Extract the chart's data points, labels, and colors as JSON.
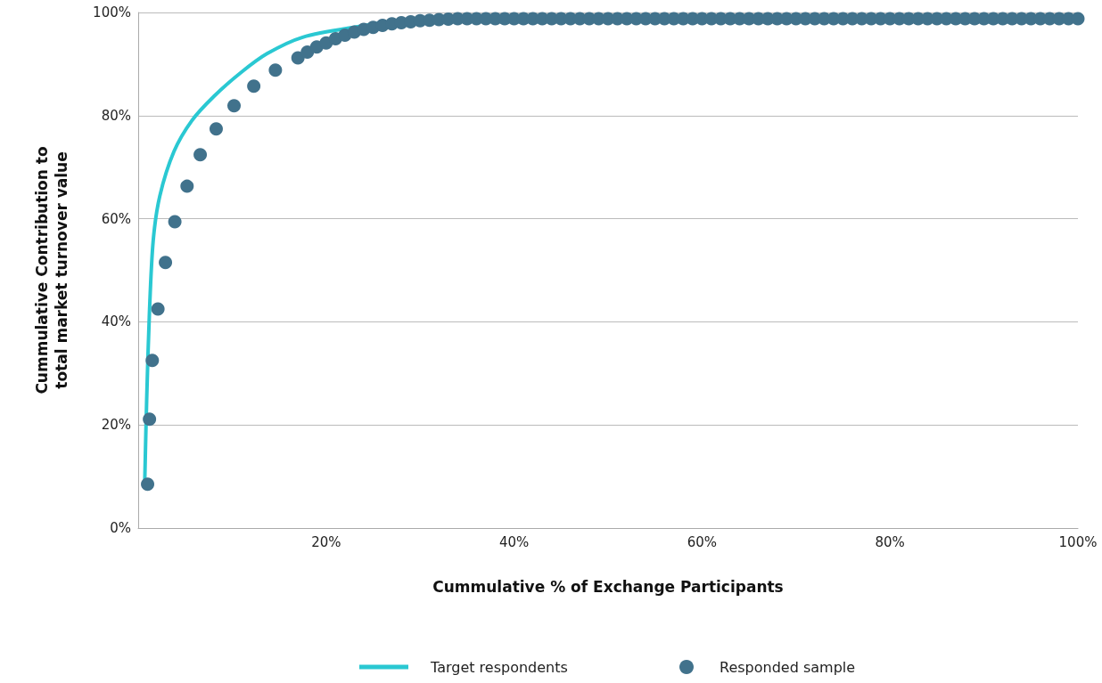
{
  "chart_data": {
    "type": "scatter",
    "xlabel": "Cummulative % of Exchange Participants",
    "ylabel": "Cummulative Contribution to\ntotal market turnover value",
    "xlim": [
      0,
      100
    ],
    "xticks": [
      {
        "value": 20,
        "label": "20%"
      },
      {
        "value": 40,
        "label": "40%"
      },
      {
        "value": 60,
        "label": "60%"
      },
      {
        "value": 80,
        "label": "80%"
      },
      {
        "value": 100,
        "label": "100%"
      }
    ],
    "ylim": [
      0,
      100
    ],
    "yticks": [
      {
        "value": 0,
        "label": "0%"
      },
      {
        "value": 20,
        "label": "20%"
      },
      {
        "value": 40,
        "label": "40%"
      },
      {
        "value": 60,
        "label": "60%"
      },
      {
        "value": 80,
        "label": "80%"
      },
      {
        "value": 100,
        "label": "100%"
      }
    ],
    "grid": "y",
    "legend": "bottom",
    "series": [
      {
        "name": "Target respondents",
        "type": "line",
        "marker": "none",
        "line_style": "solid",
        "color": "#2ac8d2",
        "x": [
          0.7,
          0.9,
          1.2,
          1.6,
          2.3,
          3.8,
          5.7,
          8.1,
          10.9,
          13.7,
          17.5,
          23.2,
          28.9,
          34.6
        ],
        "values": [
          9.2,
          24.7,
          42,
          55.8,
          64.4,
          73,
          79,
          83.8,
          88.3,
          92,
          95.2,
          97.2,
          98.6,
          99
        ]
      },
      {
        "name": "Responded sample",
        "marker": "circle",
        "color": "#41728c",
        "x": [
          1.0,
          1.2,
          1.5,
          2.1,
          2.9,
          3.9,
          5.2,
          6.6,
          8.3,
          10.2,
          12.3,
          14.6,
          17,
          18,
          19,
          20,
          21,
          22,
          23,
          24,
          25,
          26,
          27,
          28,
          29,
          30,
          31,
          32,
          33,
          34,
          35,
          36,
          37,
          38,
          39,
          40,
          41,
          42,
          43,
          44,
          45,
          46,
          47,
          48,
          49,
          50,
          51,
          52,
          53,
          54,
          55,
          56,
          57,
          58,
          59,
          60,
          61,
          62,
          63,
          64,
          65,
          66,
          67,
          68,
          69,
          70,
          71,
          72,
          73,
          74,
          75,
          76,
          77,
          78,
          79,
          80,
          81,
          82,
          83,
          84,
          85,
          86,
          87,
          88,
          89,
          90,
          91,
          92,
          93,
          94,
          95,
          96,
          97,
          98,
          99,
          100
        ],
        "values": [
          8.5,
          21.1,
          32.5,
          42.5,
          51.5,
          59.4,
          66.3,
          72.4,
          77.4,
          81.9,
          85.7,
          88.8,
          91.2,
          92.3,
          93.3,
          94.1,
          94.9,
          95.6,
          96.2,
          96.7,
          97.1,
          97.5,
          97.8,
          98.0,
          98.2,
          98.4,
          98.5,
          98.6,
          98.7,
          98.8,
          98.8,
          98.8,
          98.8,
          98.8,
          98.8,
          98.8,
          98.8,
          98.8,
          98.8,
          98.8,
          98.8,
          98.8,
          98.8,
          98.8,
          98.8,
          98.8,
          98.8,
          98.8,
          98.8,
          98.8,
          98.8,
          98.8,
          98.8,
          98.8,
          98.8,
          98.8,
          98.8,
          98.8,
          98.8,
          98.8,
          98.8,
          98.8,
          98.8,
          98.8,
          98.8,
          98.8,
          98.8,
          98.8,
          98.8,
          98.8,
          98.8,
          98.8,
          98.8,
          98.8,
          98.8,
          98.8,
          98.8,
          98.8,
          98.8,
          98.8,
          98.8,
          98.8,
          98.8,
          98.8,
          98.8,
          98.8,
          98.8,
          98.8,
          98.8,
          98.8,
          98.8,
          98.8,
          98.8,
          98.8,
          98.8,
          98.8
        ]
      }
    ]
  }
}
